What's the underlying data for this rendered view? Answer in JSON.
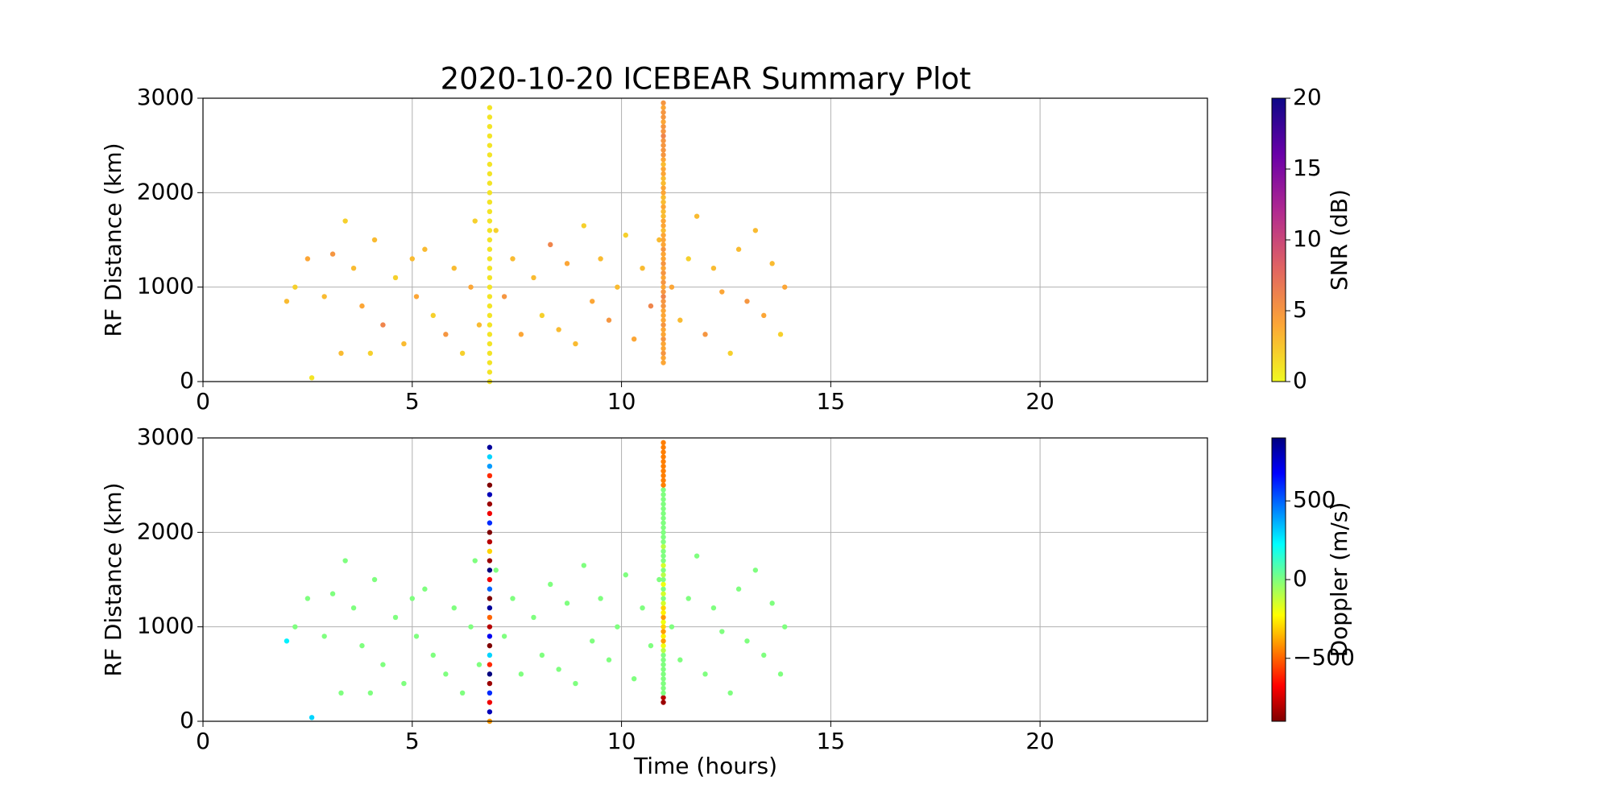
{
  "chart_data": [
    {
      "type": "scatter",
      "title": "2020-10-20 ICEBEAR Summary Plot",
      "ylabel": "RF Distance (km)",
      "xlim": [
        0,
        24
      ],
      "ylim": [
        0,
        3000
      ],
      "xticks": [
        0,
        5,
        10,
        15,
        20
      ],
      "yticks": [
        0,
        1000,
        2000,
        3000
      ],
      "grid": true,
      "x": [
        2.0,
        2.2,
        2.5,
        2.9,
        3.1,
        3.4,
        3.6,
        3.8,
        4.1,
        4.3,
        4.6,
        4.8,
        5.1,
        5.3,
        5.5,
        5.8,
        6.0,
        6.2,
        6.4,
        6.6,
        7.0,
        7.2,
        7.4,
        7.6,
        7.9,
        8.1,
        8.3,
        8.5,
        8.7,
        8.9,
        9.1,
        9.3,
        9.5,
        9.7,
        9.9,
        10.1,
        10.3,
        10.5,
        10.7,
        10.9,
        11.2,
        11.4,
        11.6,
        11.8,
        12.0,
        12.2,
        12.4,
        12.6,
        12.8,
        13.0,
        13.2,
        13.4,
        13.6,
        13.8,
        13.9,
        2.6,
        3.3,
        4.0,
        5.0,
        6.5,
        6.85,
        6.85,
        6.85,
        6.85,
        6.85,
        6.85,
        6.85,
        6.85,
        6.85,
        6.85,
        6.85,
        6.85,
        6.85,
        6.85,
        6.85,
        6.85,
        6.85,
        6.85,
        6.85,
        6.85,
        6.85,
        6.85,
        6.85,
        6.85,
        6.85,
        6.85,
        6.85,
        6.85,
        6.85,
        6.85,
        11,
        11,
        11,
        11,
        11,
        11,
        11,
        11,
        11,
        11,
        11,
        11,
        11,
        11,
        11,
        11,
        11,
        11,
        11,
        11,
        11,
        11,
        11,
        11,
        11,
        11,
        11,
        11,
        11,
        11,
        11,
        11,
        11,
        11,
        11,
        11,
        11,
        11,
        11,
        11,
        11,
        11,
        11,
        11,
        11,
        11,
        11,
        11,
        11,
        11,
        11,
        11,
        11,
        11,
        11,
        11
      ],
      "y": [
        850,
        1000,
        1300,
        900,
        1350,
        1700,
        1200,
        800,
        1500,
        600,
        1100,
        400,
        900,
        1400,
        700,
        500,
        1200,
        300,
        1000,
        600,
        1600,
        900,
        1300,
        500,
        1100,
        700,
        1450,
        550,
        1250,
        400,
        1650,
        850,
        1300,
        650,
        1000,
        1550,
        450,
        1200,
        800,
        1500,
        1000,
        650,
        1300,
        1750,
        500,
        1200,
        950,
        300,
        1400,
        850,
        1600,
        700,
        1250,
        500,
        1000,
        40,
        300,
        300,
        1300,
        1700,
        0,
        100,
        200,
        300,
        400,
        500,
        600,
        700,
        800,
        900,
        1000,
        1100,
        1200,
        1300,
        1400,
        1500,
        1600,
        1700,
        1800,
        1900,
        2000,
        2100,
        2200,
        2300,
        2400,
        2500,
        2600,
        2700,
        2800,
        2900,
        200,
        250,
        300,
        350,
        400,
        450,
        500,
        550,
        600,
        650,
        700,
        750,
        800,
        850,
        900,
        950,
        1000,
        1050,
        1100,
        1150,
        1200,
        1250,
        1300,
        1350,
        1400,
        1450,
        1500,
        1550,
        1600,
        1650,
        1700,
        1750,
        1800,
        1850,
        1900,
        1950,
        2000,
        2050,
        2100,
        2150,
        2200,
        2250,
        2300,
        2350,
        2400,
        2450,
        2500,
        2550,
        2600,
        2650,
        2700,
        2750,
        2800,
        2950,
        2900,
        2850
      ],
      "c": [
        3,
        2,
        4,
        3,
        5,
        2,
        3,
        4,
        3,
        6,
        2,
        3,
        4,
        3,
        2,
        5,
        3,
        2,
        4,
        3,
        2,
        5,
        3,
        4,
        3,
        2,
        6,
        3,
        4,
        3,
        2,
        4,
        3,
        5,
        3,
        2,
        4,
        3,
        6,
        3,
        4,
        3,
        2,
        3,
        5,
        3,
        4,
        2,
        3,
        5,
        3,
        4,
        3,
        2,
        4,
        1,
        3,
        2,
        3,
        2,
        1,
        1,
        1,
        1,
        1,
        1,
        1,
        1,
        1,
        1,
        1,
        1,
        1,
        1,
        1,
        1,
        1,
        1,
        1,
        1,
        1,
        1,
        1,
        1,
        1,
        1,
        1,
        1,
        1,
        1,
        4,
        4,
        5,
        4,
        4,
        5,
        4,
        4,
        5,
        4,
        4,
        4,
        5,
        5,
        6,
        5,
        4,
        5,
        4,
        5,
        4,
        5,
        4,
        4,
        5,
        4,
        4,
        4,
        3,
        4,
        4,
        3,
        3,
        4,
        3,
        3,
        4,
        4,
        3,
        3,
        4,
        4,
        3,
        4,
        5,
        5,
        5,
        5,
        6,
        5,
        5,
        4,
        5,
        5,
        4,
        5
      ],
      "colorbar": {
        "label": "SNR (dB)",
        "lim": [
          0,
          20
        ],
        "ticks": [
          0,
          5,
          10,
          15,
          20
        ],
        "colors": [
          "#f0f921",
          "#fca636",
          "#e16462",
          "#b12a90",
          "#6a00a8",
          "#0d0887"
        ]
      }
    },
    {
      "type": "scatter",
      "ylabel": "RF Distance (km)",
      "xlabel": "Time (hours)",
      "xlim": [
        0,
        24
      ],
      "ylim": [
        0,
        3000
      ],
      "xticks": [
        0,
        5,
        10,
        15,
        20
      ],
      "yticks": [
        0,
        1000,
        2000,
        3000
      ],
      "grid": true,
      "x": [
        2.0,
        2.2,
        2.5,
        2.9,
        3.1,
        3.4,
        3.6,
        3.8,
        4.1,
        4.3,
        4.6,
        4.8,
        5.1,
        5.3,
        5.5,
        5.8,
        6.0,
        6.2,
        6.4,
        6.6,
        7.0,
        7.2,
        7.4,
        7.6,
        7.9,
        8.1,
        8.3,
        8.5,
        8.7,
        8.9,
        9.1,
        9.3,
        9.5,
        9.7,
        9.9,
        10.1,
        10.3,
        10.5,
        10.7,
        10.9,
        11.2,
        11.4,
        11.6,
        11.8,
        12.0,
        12.2,
        12.4,
        12.6,
        12.8,
        13.0,
        13.2,
        13.4,
        13.6,
        13.8,
        13.9,
        2.6,
        3.3,
        4.0,
        5.0,
        6.5,
        6.85,
        6.85,
        6.85,
        6.85,
        6.85,
        6.85,
        6.85,
        6.85,
        6.85,
        6.85,
        6.85,
        6.85,
        6.85,
        6.85,
        6.85,
        6.85,
        6.85,
        6.85,
        6.85,
        6.85,
        6.85,
        6.85,
        6.85,
        6.85,
        6.85,
        6.85,
        6.85,
        6.85,
        6.85,
        6.85,
        11,
        11,
        11,
        11,
        11,
        11,
        11,
        11,
        11,
        11,
        11,
        11,
        11,
        11,
        11,
        11,
        11,
        11,
        11,
        11,
        11,
        11,
        11,
        11,
        11,
        11,
        11,
        11,
        11,
        11,
        11,
        11,
        11,
        11,
        11,
        11,
        11,
        11,
        11,
        11,
        11,
        11,
        11,
        11,
        11,
        11,
        11,
        11,
        11,
        11,
        11,
        11,
        11,
        11,
        11,
        11
      ],
      "y": [
        850,
        1000,
        1300,
        900,
        1350,
        1700,
        1200,
        800,
        1500,
        600,
        1100,
        400,
        900,
        1400,
        700,
        500,
        1200,
        300,
        1000,
        600,
        1600,
        900,
        1300,
        500,
        1100,
        700,
        1450,
        550,
        1250,
        400,
        1650,
        850,
        1300,
        650,
        1000,
        1550,
        450,
        1200,
        800,
        1500,
        1000,
        650,
        1300,
        1750,
        500,
        1200,
        950,
        300,
        1400,
        850,
        1600,
        700,
        1250,
        500,
        1000,
        40,
        300,
        300,
        1300,
        1700,
        0,
        100,
        200,
        300,
        400,
        500,
        600,
        700,
        800,
        900,
        1000,
        1100,
        1200,
        1300,
        1400,
        1500,
        1600,
        1700,
        1800,
        1900,
        2000,
        2100,
        2200,
        2300,
        2400,
        2500,
        2600,
        2700,
        2800,
        2900,
        200,
        250,
        300,
        350,
        400,
        450,
        500,
        550,
        600,
        650,
        700,
        750,
        800,
        850,
        900,
        950,
        1000,
        1050,
        1100,
        1150,
        1200,
        1250,
        1300,
        1350,
        1400,
        1450,
        1500,
        1550,
        1600,
        1650,
        1700,
        1750,
        1800,
        1850,
        1900,
        1950,
        2000,
        2050,
        2100,
        2150,
        2200,
        2250,
        2300,
        2350,
        2400,
        2450,
        2500,
        2550,
        2600,
        2650,
        2700,
        2750,
        2800,
        2950,
        2900,
        2850
      ],
      "c": [
        250,
        0,
        0,
        0,
        0,
        0,
        0,
        0,
        0,
        0,
        0,
        0,
        0,
        0,
        0,
        0,
        0,
        0,
        0,
        0,
        0,
        0,
        0,
        0,
        0,
        0,
        0,
        0,
        0,
        0,
        0,
        0,
        0,
        0,
        0,
        0,
        0,
        0,
        0,
        0,
        0,
        0,
        0,
        0,
        0,
        0,
        0,
        0,
        0,
        0,
        0,
        0,
        0,
        0,
        0,
        300,
        0,
        0,
        0,
        0,
        -400,
        800,
        -700,
        600,
        -850,
        900,
        -600,
        300,
        -900,
        700,
        -800,
        -500,
        850,
        -900,
        500,
        -700,
        900,
        -850,
        -300,
        -800,
        -900,
        600,
        -700,
        -850,
        800,
        -900,
        -600,
        400,
        300,
        850,
        -850,
        -800,
        0,
        0,
        0,
        0,
        0,
        0,
        0,
        0,
        0,
        -100,
        -200,
        -400,
        -250,
        -400,
        -300,
        -200,
        -400,
        -250,
        -300,
        -150,
        0,
        -150,
        0,
        -200,
        0,
        -100,
        0,
        -150,
        0,
        0,
        0,
        -100,
        0,
        0,
        0,
        0,
        0,
        0,
        0,
        0,
        0,
        0,
        0,
        0,
        -450,
        -450,
        -450,
        -450,
        -450,
        -450,
        -450,
        -450,
        -450,
        -450
      ],
      "colorbar": {
        "label": "Doppler (m/s)",
        "lim": [
          -900,
          900
        ],
        "ticks": [
          {
            "value": -500,
            "label": "−500"
          },
          0,
          500
        ],
        "colors": [
          "#7f0000",
          "#ff0000",
          "#ff7f00",
          "#ffff00",
          "#7fff7f",
          "#00ffff",
          "#007fff",
          "#0000ff",
          "#00007f"
        ]
      }
    }
  ]
}
